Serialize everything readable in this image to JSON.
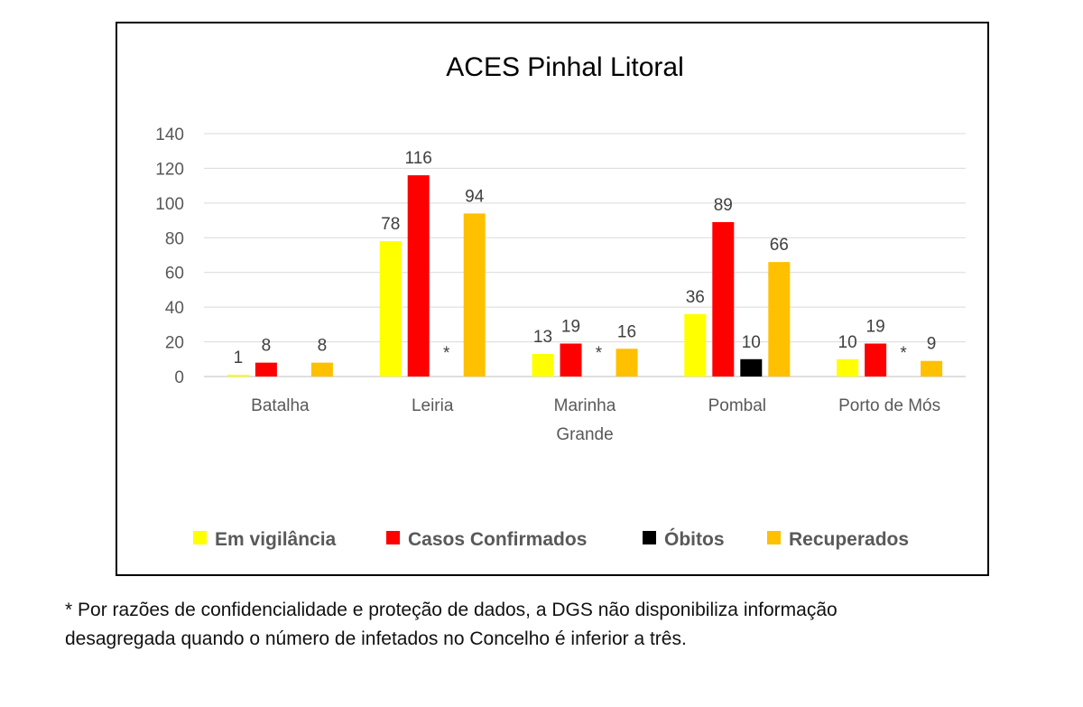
{
  "chart_data": {
    "type": "bar",
    "title": "ACES Pinhal Litoral",
    "categories": [
      [
        "Batalha"
      ],
      [
        "Leiria"
      ],
      [
        "Marinha",
        "Grande"
      ],
      [
        "Pombal"
      ],
      [
        "Porto de Mós"
      ]
    ],
    "ylim": [
      0,
      140
    ],
    "yticks": [
      "0",
      "20",
      "40",
      "60",
      "80",
      "100",
      "120",
      "140"
    ],
    "grid": true,
    "legend_position": "bottom",
    "series": [
      {
        "name": "Em vigilância",
        "color": "#ffff00",
        "values": [
          1,
          78,
          13,
          36,
          10
        ],
        "labels": [
          "1",
          "78",
          "13",
          "36",
          "10"
        ]
      },
      {
        "name": "Casos Confirmados",
        "color": "#ff0000",
        "values": [
          8,
          116,
          19,
          89,
          19
        ],
        "labels": [
          "8",
          "116",
          "19",
          "89",
          "19"
        ]
      },
      {
        "name": "Óbitos",
        "color": "#000000",
        "values": [
          null,
          null,
          null,
          10,
          null
        ],
        "labels": [
          "",
          "*",
          "*",
          "10",
          "*"
        ]
      },
      {
        "name": "Recuperados",
        "color": "#ffc000",
        "values": [
          8,
          94,
          16,
          66,
          9
        ],
        "labels": [
          "8",
          "94",
          "16",
          "66",
          "9"
        ]
      }
    ]
  },
  "footnote": {
    "line1": "* Por razões de confidencialidade e proteção de dados, a DGS não disponibiliza informação",
    "line2": "desagregada quando o número de infetados no Concelho é inferior a três."
  }
}
